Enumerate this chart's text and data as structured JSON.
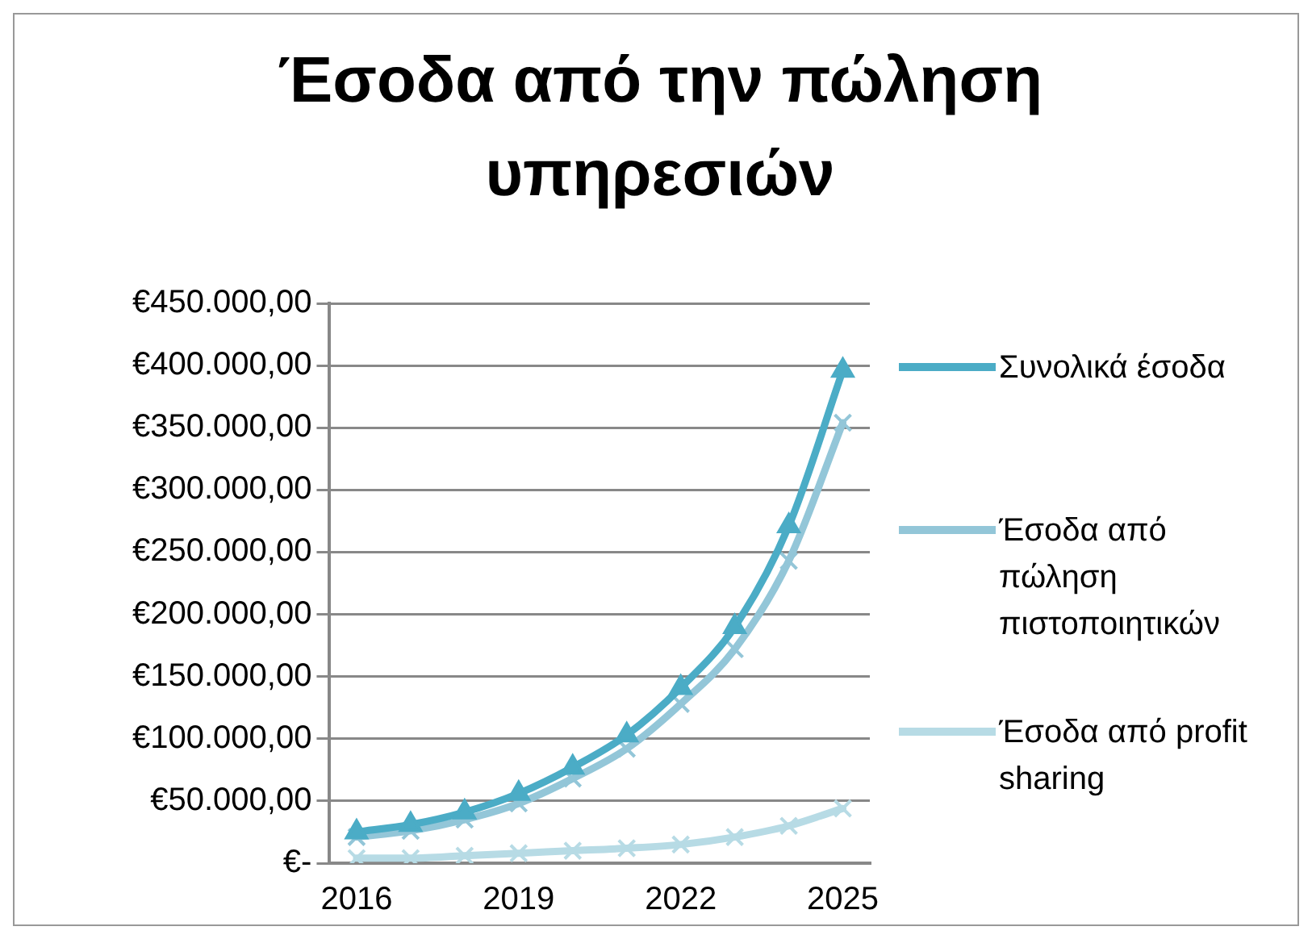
{
  "chart_data": {
    "type": "line",
    "title": "Έσοδα από την πώληση υπηρεσιών",
    "categories": [
      "2016",
      null,
      null,
      "2019",
      null,
      null,
      "2022",
      null,
      null,
      "2025"
    ],
    "series": [
      {
        "name": "Συνολικά έσοδα",
        "color": "#4bacc6",
        "marker": "triangle",
        "values": [
          25000,
          31000,
          41000,
          56000,
          77000,
          103000,
          141000,
          190000,
          271000,
          396000
        ]
      },
      {
        "name": "Έσοδα από πώληση πιστοποιητικών",
        "color": "#93c6d8",
        "marker": "cross",
        "values": [
          21000,
          26000,
          35000,
          48000,
          68000,
          92000,
          128000,
          172000,
          243000,
          354000
        ]
      },
      {
        "name": "Έσοδα από profit sharing",
        "color": "#b7dbe5",
        "marker": "cross",
        "values": [
          4000,
          4000,
          6000,
          8000,
          10000,
          12000,
          15000,
          21000,
          30000,
          44000
        ]
      }
    ],
    "ylim": [
      0,
      450000
    ],
    "yticks": [
      {
        "value": 0,
        "label": "€-"
      },
      {
        "value": 50000,
        "label": "€50.000,00"
      },
      {
        "value": 100000,
        "label": "€100.000,00"
      },
      {
        "value": 150000,
        "label": "€150.000,00"
      },
      {
        "value": 200000,
        "label": "€200.000,00"
      },
      {
        "value": 250000,
        "label": "€250.000,00"
      },
      {
        "value": 300000,
        "label": "€300.000,00"
      },
      {
        "value": 350000,
        "label": "€350.000,00"
      },
      {
        "value": 400000,
        "label": "€400.000,00"
      },
      {
        "value": 450000,
        "label": "€450.000,00"
      }
    ],
    "grid": "y",
    "legend": "right",
    "line_style": "solid"
  }
}
